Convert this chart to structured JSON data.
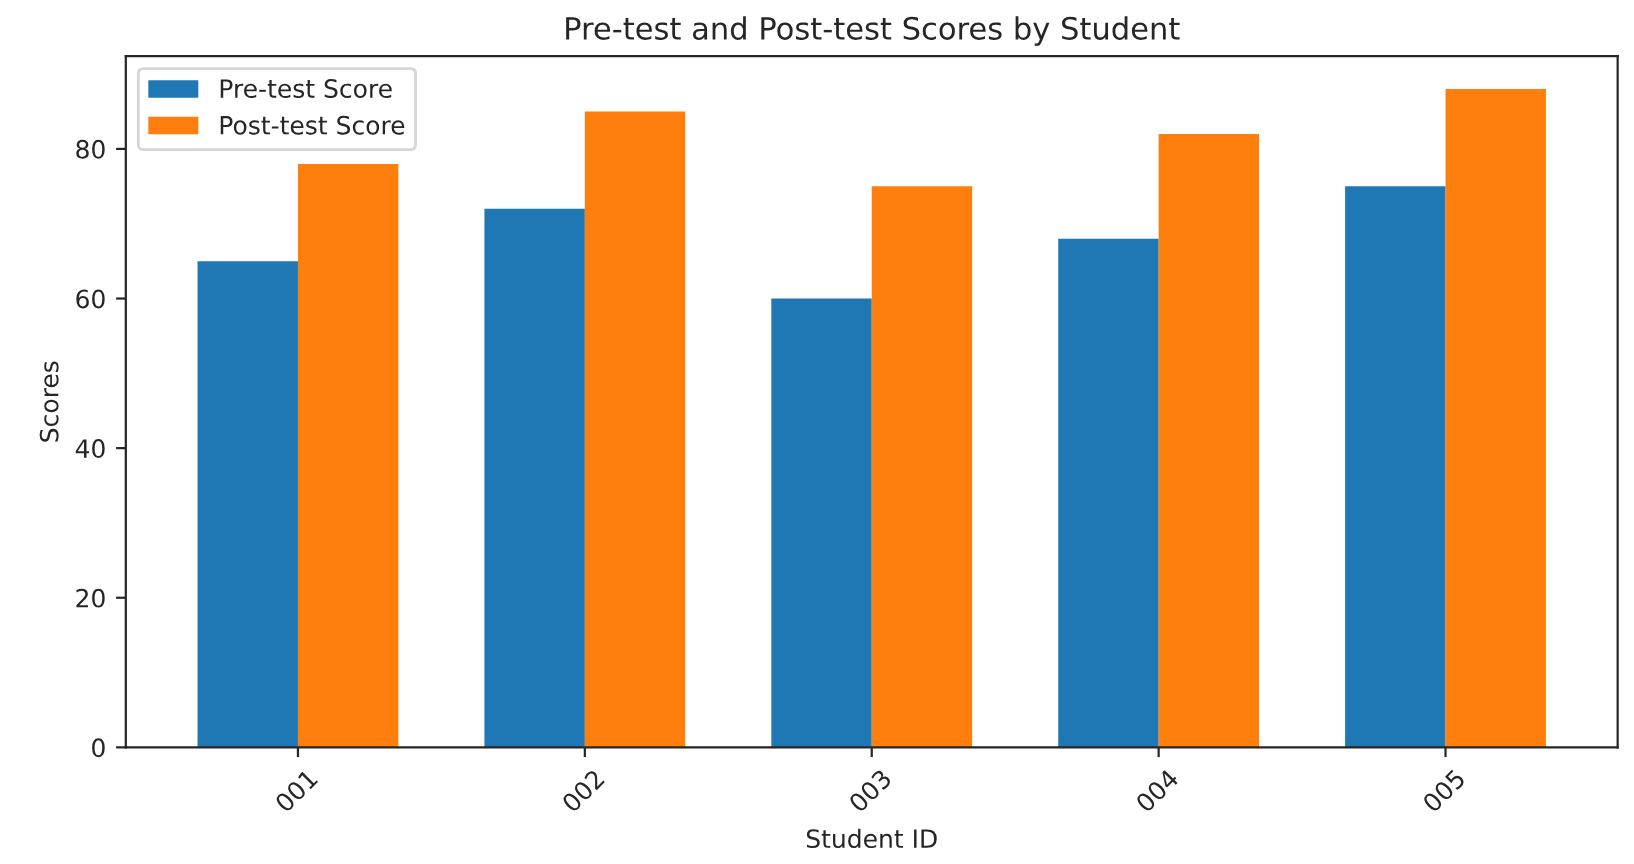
{
  "chart_data": {
    "type": "bar",
    "title": "Pre-test and Post-test Scores by Student",
    "xlabel": "Student ID",
    "ylabel": "Scores",
    "categories": [
      "001",
      "002",
      "003",
      "004",
      "005"
    ],
    "series": [
      {
        "name": "Pre-test Score",
        "color": "#1f77b4",
        "values": [
          65,
          72,
          60,
          68,
          75
        ]
      },
      {
        "name": "Post-test Score",
        "color": "#ff7f0e",
        "values": [
          78,
          85,
          75,
          82,
          88
        ]
      }
    ],
    "ylim": [
      0,
      92.4
    ],
    "yticks": [
      0,
      20,
      40,
      60,
      80
    ],
    "grid": false,
    "legend": "top left"
  }
}
